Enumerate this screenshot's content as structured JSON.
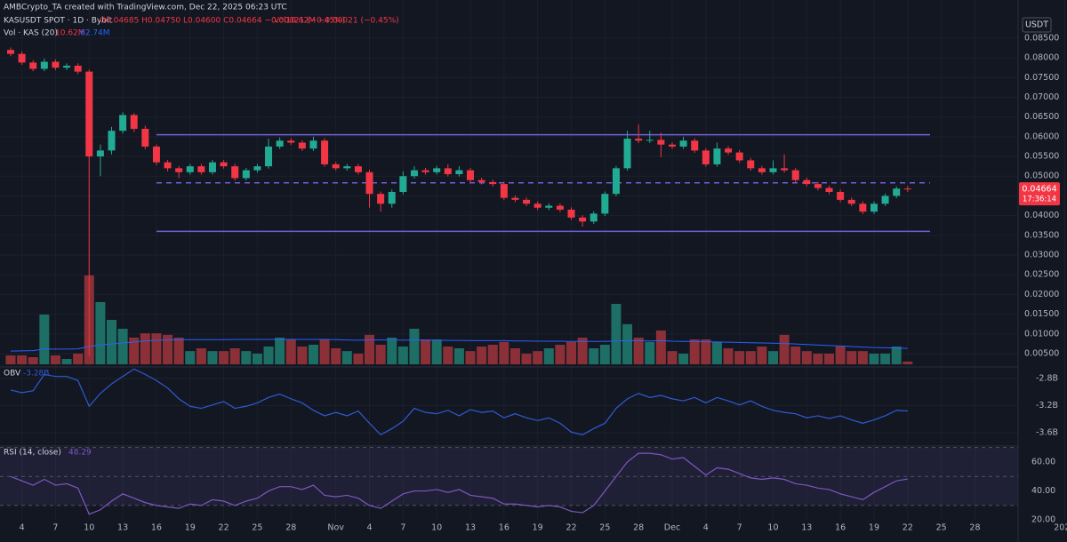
{
  "chart_data": {
    "type": "candlestick",
    "header": {
      "credit": "AMBCrypto_TA created with TradingView.com, Dec 22, 2025 06:23 UTC",
      "symbol": "KASUSDT SPOT · 1D · Bybit",
      "ohlc": "O0.04685 H0.04750 L0.04600 C0.04664 −0.00021 (−0.45%)",
      "vol": "Vol10.62M −0.00021 (−0.45%)",
      "vol_indicator": "Vol · KAS (20)",
      "vol_value": "10.62M",
      "vol_ma_value": "62.74M"
    },
    "currency": "USDT",
    "last_price_label": "0.04664",
    "countdown": "17:36:14",
    "x_labels": [
      "4",
      "7",
      "10",
      "13",
      "16",
      "19",
      "22",
      "25",
      "28",
      "Nov",
      "4",
      "7",
      "10",
      "13",
      "16",
      "19",
      "22",
      "25",
      "28",
      "Dec",
      "4",
      "7",
      "10",
      "13",
      "16",
      "19",
      "22",
      "25",
      "28",
      "2026"
    ],
    "open": [
      0.082,
      0.081,
      0.0788,
      0.0772,
      0.079,
      0.0775,
      0.078,
      0.0765,
      0.055,
      0.0565,
      0.0615,
      0.0655,
      0.062,
      0.0575,
      0.0535,
      0.052,
      0.051,
      0.0525,
      0.051,
      0.0535,
      0.0525,
      0.0495,
      0.0515,
      0.0525,
      0.0575,
      0.059,
      0.0585,
      0.057,
      0.059,
      0.053,
      0.052,
      0.0525,
      0.051,
      0.0455,
      0.043,
      0.046,
      0.05,
      0.0515,
      0.051,
      0.052,
      0.0505,
      0.0515,
      0.049,
      0.0485,
      0.048,
      0.0445,
      0.044,
      0.043,
      0.042,
      0.0425,
      0.0415,
      0.0395,
      0.0385,
      0.0405,
      0.0455,
      0.052,
      0.0595,
      0.059,
      0.0592,
      0.058,
      0.0575,
      0.059,
      0.0565,
      0.053,
      0.057,
      0.056,
      0.054,
      0.052,
      0.051,
      0.052,
      0.0515,
      0.049,
      0.048,
      0.047,
      0.046,
      0.044,
      0.043,
      0.041,
      0.043,
      0.045,
      0.04685
    ],
    "high": [
      0.0826,
      0.0816,
      0.0794,
      0.0798,
      0.0796,
      0.0786,
      0.0786,
      0.077,
      0.058,
      0.0625,
      0.0662,
      0.066,
      0.0628,
      0.058,
      0.0541,
      0.0526,
      0.0531,
      0.0531,
      0.0541,
      0.0541,
      0.0531,
      0.0521,
      0.0531,
      0.0595,
      0.0598,
      0.0596,
      0.0591,
      0.06,
      0.0596,
      0.0536,
      0.0531,
      0.0531,
      0.0516,
      0.0461,
      0.0466,
      0.0512,
      0.0525,
      0.0521,
      0.0526,
      0.053,
      0.0525,
      0.0521,
      0.0496,
      0.0491,
      0.0486,
      0.0451,
      0.0446,
      0.0436,
      0.0431,
      0.0431,
      0.0421,
      0.0401,
      0.0411,
      0.0461,
      0.0526,
      0.0615,
      0.0631,
      0.0615,
      0.061,
      0.0586,
      0.06,
      0.0596,
      0.0571,
      0.0585,
      0.0576,
      0.0566,
      0.0546,
      0.0526,
      0.054,
      0.0555,
      0.0521,
      0.0496,
      0.0486,
      0.0476,
      0.0466,
      0.0446,
      0.0436,
      0.0436,
      0.0456,
      0.0474,
      0.0475
    ],
    "low": [
      0.0804,
      0.0782,
      0.0766,
      0.0766,
      0.0769,
      0.0769,
      0.0759,
      0.0045,
      0.05,
      0.0555,
      0.0608,
      0.0612,
      0.0568,
      0.0528,
      0.0512,
      0.0495,
      0.0504,
      0.0504,
      0.0504,
      0.0519,
      0.0489,
      0.0489,
      0.0509,
      0.0519,
      0.0569,
      0.0579,
      0.0564,
      0.0564,
      0.0524,
      0.0514,
      0.0514,
      0.0504,
      0.042,
      0.041,
      0.042,
      0.0454,
      0.0494,
      0.0504,
      0.0504,
      0.0499,
      0.0499,
      0.0484,
      0.0479,
      0.0474,
      0.0439,
      0.0434,
      0.0424,
      0.0414,
      0.0414,
      0.0409,
      0.0389,
      0.0372,
      0.0379,
      0.0399,
      0.0449,
      0.0514,
      0.0584,
      0.0584,
      0.0548,
      0.0569,
      0.0569,
      0.0559,
      0.0524,
      0.0524,
      0.0554,
      0.0534,
      0.0514,
      0.0504,
      0.0504,
      0.0509,
      0.0484,
      0.0474,
      0.0464,
      0.0454,
      0.0434,
      0.0424,
      0.0404,
      0.0404,
      0.0424,
      0.0444,
      0.046
    ],
    "close": [
      0.081,
      0.0788,
      0.0772,
      0.079,
      0.0775,
      0.078,
      0.0765,
      0.055,
      0.0565,
      0.0615,
      0.0655,
      0.062,
      0.0575,
      0.0535,
      0.052,
      0.051,
      0.0525,
      0.051,
      0.0535,
      0.0525,
      0.0495,
      0.0515,
      0.0525,
      0.0575,
      0.059,
      0.0585,
      0.057,
      0.059,
      0.053,
      0.052,
      0.0525,
      0.051,
      0.0455,
      0.043,
      0.046,
      0.05,
      0.0515,
      0.051,
      0.052,
      0.0505,
      0.0515,
      0.049,
      0.0485,
      0.048,
      0.0445,
      0.044,
      0.043,
      0.042,
      0.0425,
      0.0415,
      0.0395,
      0.0385,
      0.0405,
      0.0455,
      0.052,
      0.0595,
      0.059,
      0.0592,
      0.058,
      0.0575,
      0.059,
      0.0565,
      0.053,
      0.057,
      0.056,
      0.054,
      0.052,
      0.051,
      0.052,
      0.0515,
      0.049,
      0.048,
      0.047,
      0.046,
      0.044,
      0.043,
      0.041,
      0.043,
      0.045,
      0.04685,
      0.04664
    ],
    "volume": [
      35,
      35,
      28,
      196,
      35,
      21,
      42,
      350,
      245,
      175,
      140,
      105,
      122,
      122,
      116,
      105,
      52,
      63,
      52,
      52,
      63,
      52,
      42,
      70,
      105,
      98,
      70,
      77,
      98,
      63,
      52,
      42,
      116,
      77,
      105,
      70,
      140,
      98,
      98,
      70,
      63,
      52,
      70,
      77,
      88,
      63,
      42,
      52,
      63,
      77,
      88,
      105,
      63,
      77,
      238,
      158,
      105,
      88,
      133,
      52,
      42,
      98,
      98,
      88,
      63,
      52,
      52,
      70,
      52,
      116,
      70,
      52,
      42,
      42,
      70,
      52,
      52,
      42,
      42,
      70,
      10.62
    ],
    "volume_ma": [
      52,
      53,
      54,
      60,
      60,
      60,
      61,
      70,
      76,
      80,
      84,
      88,
      92,
      95,
      96,
      97,
      97,
      97,
      97,
      97,
      98,
      98,
      98,
      98,
      98,
      98,
      98,
      98,
      98,
      97,
      96,
      95,
      96,
      96,
      96,
      95,
      96,
      95,
      95,
      94,
      94,
      93,
      93,
      93,
      93,
      92,
      92,
      91,
      91,
      91,
      90,
      90,
      90,
      90,
      92,
      93,
      93,
      92,
      93,
      91,
      90,
      90,
      89,
      88,
      87,
      86,
      85,
      84,
      83,
      82,
      80,
      78,
      76,
      74,
      72,
      70,
      68,
      66,
      65,
      64,
      62.74
    ],
    "volume_lim": [
      0,
      1330
    ],
    "ylim": [
      0.0023,
      0.0879
    ],
    "yticks": [
      {
        "value": 0.085,
        "label": "0.08500"
      },
      {
        "value": 0.08,
        "label": "0.08000"
      },
      {
        "value": 0.075,
        "label": "0.07500"
      },
      {
        "value": 0.07,
        "label": "0.07000"
      },
      {
        "value": 0.065,
        "label": "0.06500"
      },
      {
        "value": 0.06,
        "label": "0.06000"
      },
      {
        "value": 0.055,
        "label": "0.05500"
      },
      {
        "value": 0.05,
        "label": "0.05000"
      },
      {
        "value": 0.045,
        "label": "0.04500"
      },
      {
        "value": 0.04,
        "label": "0.04000"
      },
      {
        "value": 0.035,
        "label": "0.03500"
      },
      {
        "value": 0.03,
        "label": "0.03000"
      },
      {
        "value": 0.025,
        "label": "0.02500"
      },
      {
        "value": 0.02,
        "label": "0.02000"
      },
      {
        "value": 0.015,
        "label": "0.01500"
      },
      {
        "value": 0.01,
        "label": "0.01000"
      },
      {
        "value": 0.005,
        "label": "0.00500"
      }
    ],
    "grid": true,
    "colors": {
      "up": "#22ab94",
      "down": "#f23645",
      "volume_up": "#1d6e65",
      "volume_down": "#8c3038",
      "volume_ma": "#2962ff",
      "drawing": "#6f5fd8"
    },
    "drawings": {
      "range_high": 0.0605,
      "range_mid": 0.0483,
      "range_low": 0.036
    },
    "obv": {
      "label": "OBV",
      "value_label": "-3.28B",
      "color": "#2f5bd3",
      "values": [
        -2.97,
        -3.01,
        -2.98,
        -2.74,
        -2.77,
        -2.77,
        -2.83,
        -3.21,
        -3.02,
        -2.88,
        -2.77,
        -2.66,
        -2.74,
        -2.83,
        -2.94,
        -3.1,
        -3.21,
        -3.24,
        -3.19,
        -3.14,
        -3.24,
        -3.21,
        -3.16,
        -3.08,
        -3.03,
        -3.1,
        -3.16,
        -3.27,
        -3.35,
        -3.3,
        -3.35,
        -3.28,
        -3.46,
        -3.63,
        -3.54,
        -3.43,
        -3.24,
        -3.3,
        -3.32,
        -3.27,
        -3.35,
        -3.26,
        -3.3,
        -3.28,
        -3.38,
        -3.32,
        -3.38,
        -3.42,
        -3.38,
        -3.46,
        -3.59,
        -3.63,
        -3.54,
        -3.46,
        -3.24,
        -3.1,
        -3.02,
        -3.08,
        -3.05,
        -3.1,
        -3.13,
        -3.08,
        -3.16,
        -3.08,
        -3.13,
        -3.19,
        -3.13,
        -3.21,
        -3.27,
        -3.3,
        -3.32,
        -3.38,
        -3.35,
        -3.39,
        -3.35,
        -3.41,
        -3.46,
        -3.41,
        -3.35,
        -3.27,
        -3.28
      ],
      "ylim": [
        -3.77,
        -2.63
      ],
      "yticks": [
        {
          "value": -2.8,
          "label": "-2.8B"
        },
        {
          "value": -3.2,
          "label": "-3.2B"
        },
        {
          "value": -3.6,
          "label": "-3.6B"
        }
      ]
    },
    "rsi": {
      "label": "RSI (14, close)",
      "value_label": "48.29",
      "color": "#7e57c2",
      "values": [
        50,
        47,
        44,
        48,
        44,
        45,
        42,
        24,
        27,
        33,
        38,
        35,
        32,
        30,
        29,
        28,
        31,
        30,
        34,
        33,
        30,
        33,
        35,
        40,
        43,
        43,
        41,
        44,
        37,
        36,
        37,
        35,
        30,
        28,
        33,
        38,
        40,
        40,
        41,
        39,
        41,
        37,
        36,
        35,
        31,
        31,
        30,
        29,
        30,
        29,
        26,
        25,
        30,
        40,
        50,
        60,
        66,
        66,
        65,
        62,
        63,
        57,
        51,
        56,
        55,
        52,
        49,
        48,
        49,
        48,
        45,
        44,
        42,
        41,
        38,
        36,
        34,
        39,
        43,
        47,
        48.29
      ],
      "ylim": [
        9.7,
        71
      ],
      "yticks": [
        {
          "value": 60,
          "label": "60.00"
        },
        {
          "value": 40,
          "label": "40.00"
        },
        {
          "value": 20,
          "label": "20.00"
        }
      ],
      "bands": [
        70,
        50,
        30
      ]
    }
  }
}
